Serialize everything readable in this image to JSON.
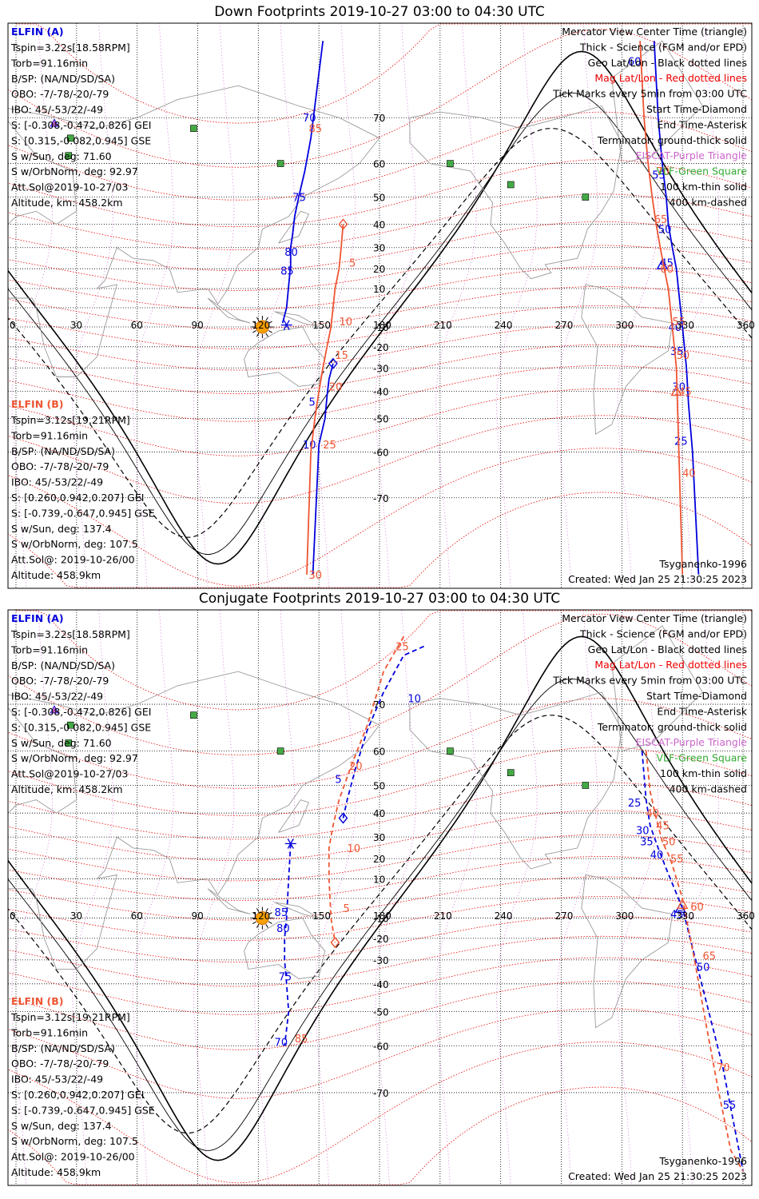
{
  "titles": {
    "down": "Down Footprints 2019-10-27 03:00 to 04:30 UTC",
    "conj": "Conjugate Footprints 2019-10-27 03:00 to 04:30 UTC"
  },
  "colors": {
    "elfin_a": "#0000dd",
    "elfin_b": "#ee5533",
    "mag": "#ee0000",
    "eiscat": "#cc66cc",
    "vlf": "#33aa33",
    "station": "#44aa44",
    "sun": "#f5a000"
  },
  "info_a": {
    "heading": "ELFIN (A)",
    "lines": [
      "Tspin=3.22s[18.58RPM]",
      "Torb=91.16min",
      "B/SP: (NA/ND/SD/SA)",
      "OBO: -7/-78/-20/-79",
      "IBO: 45/-53/22/-49",
      "S: [-0.308,-0.472,0.826] GEI",
      "S: [0.315,-0.082,0.945] GSE",
      "S w/Sun, deg: 71.60",
      "S w/OrbNorm, deg: 92.97",
      "Att.Sol@2019-10-27/03",
      "Altitude, km: 458.2km"
    ]
  },
  "info_b": {
    "heading": "ELFIN (B)",
    "lines": [
      "Tspin=3.12s[19.21RPM]",
      "Torb=91.16min",
      "B/SP: (NA/ND/SD/SA)",
      "OBO: -7/-78/-20/-79",
      "IBO: 45/-53/22/-49",
      "S: [0.260,0.942,0.207] GEI",
      "S: [-0.739,-0.647,0.945] GSE",
      "S w/Sun, deg: 137.4",
      "S w/OrbNorm, deg: 107.5",
      "Att.Sol@: 2019-10-26/00",
      "Altitude: 458.9km"
    ]
  },
  "legend": [
    {
      "text": "Mercator View Center Time (triangle)",
      "color": "#000000"
    },
    {
      "text": "Thick - Science (FGM and/or EPD)",
      "color": "#000000"
    },
    {
      "text": "Geo Lat/Lon - Black dotted lines",
      "color": "#000000"
    },
    {
      "text": "Mag Lat/Lon - Red dotted lines",
      "color": "#ee0000"
    },
    {
      "text": "Tick Marks every 5min from 03:00 UTC",
      "color": "#000000"
    },
    {
      "text": "Start Time-Diamond",
      "color": "#000000"
    },
    {
      "text": "End Time-Asterisk",
      "color": "#000000"
    },
    {
      "text": "Terminator: ground-thick solid",
      "color": "#000000"
    },
    {
      "text": "EISCAT-Purple Triangle",
      "color": "#cc66cc"
    },
    {
      "text": "VLF-Green Square",
      "color": "#33aa33"
    },
    {
      "text": "100 km-thin solid",
      "color": "#000000"
    },
    {
      "text": "400 km-dashed",
      "color": "#000000"
    }
  ],
  "footer": {
    "model": "Tsyganenko-1996",
    "created": "Created: Wed Jan 25 21:30:25 2023"
  },
  "axis_labels": {
    "lon": [
      "0",
      "30",
      "60",
      "90",
      "120",
      "150",
      "180",
      "210",
      "240",
      "270",
      "300",
      "330",
      "360"
    ],
    "lat": [
      "70",
      "60",
      "50",
      "40",
      "30",
      "20",
      "10",
      "-10",
      "-20",
      "-30",
      "-40",
      "-50",
      "-60",
      "-70"
    ]
  },
  "chart_data": [
    {
      "type": "line",
      "title": "Down Footprints 2019-10-27 03:00 to 04:30 UTC",
      "projection": "Mercator",
      "xlabel": "",
      "ylabel": "",
      "xlim": [
        0,
        360
      ],
      "ylim": [
        -80,
        80
      ],
      "x_ticks": [
        0,
        30,
        60,
        90,
        120,
        150,
        180,
        210,
        240,
        270,
        300,
        330,
        360
      ],
      "y_ticks": [
        70,
        60,
        50,
        40,
        30,
        20,
        10,
        -10,
        -20,
        -30,
        -40,
        -50,
        -60,
        -70
      ],
      "grid": true,
      "series": [
        {
          "name": "ELFIN (A)",
          "style": "solid",
          "segments": [
            {
              "lon": [
                152,
                148,
                146,
                143,
                140,
                138,
                137,
                136,
                136,
                134,
                132
              ],
              "lat": [
                80,
                72,
                66,
                58,
                50,
                43,
                36,
                30,
                22,
                0,
                -8
              ]
            },
            {
              "lon": [
                157,
                155,
                154,
                153,
                150,
                147
              ],
              "lat": [
                -28,
                -35,
                -42,
                -50,
                -58,
                -80
              ]
            },
            {
              "lon": [
                316,
                318,
                320,
                322,
                323,
                325,
                327,
                328,
                330,
                332,
                333,
                335,
                338
              ],
              "lat": [
                80,
                70,
                60,
                50,
                40,
                30,
                20,
                10,
                -10,
                -30,
                -45,
                -60,
                -80
              ]
            }
          ],
          "tick_labels": [
            {
              "text": "70",
              "lon": 142,
              "lat": 70
            },
            {
              "text": "75",
              "lon": 137,
              "lat": 50
            },
            {
              "text": "80",
              "lon": 133,
              "lat": 28
            },
            {
              "text": "85",
              "lon": 131,
              "lat": 19
            },
            {
              "text": "5",
              "lon": 145,
              "lat": -44
            },
            {
              "text": "10",
              "lon": 142,
              "lat": -58
            },
            {
              "text": "60",
              "lon": 303,
              "lat": 78
            },
            {
              "text": "55",
              "lon": 315,
              "lat": 57
            },
            {
              "text": "50",
              "lon": 318,
              "lat": 38
            },
            {
              "text": "45",
              "lon": 319,
              "lat": 23
            },
            {
              "text": "40",
              "lon": 323,
              "lat": -10
            },
            {
              "text": "35",
              "lon": 324,
              "lat": -22
            },
            {
              "text": "30",
              "lon": 325,
              "lat": -38
            },
            {
              "text": "25",
              "lon": 326,
              "lat": -57
            }
          ],
          "start_marker": {
            "lon": 157,
            "lat": -28
          },
          "end_marker": {
            "lon": 134,
            "lat": -9
          },
          "center_marker": {
            "lon": 320,
            "lat": 22
          }
        },
        {
          "name": "ELFIN (B)",
          "style": "solid",
          "segments": [
            {
              "lon": [
                162,
                161,
                160,
                158,
                156,
                154,
                152,
                150,
                148,
                146,
                144
              ],
              "lat": [
                40,
                30,
                20,
                10,
                -10,
                -20,
                -30,
                -40,
                -50,
                -60,
                -80
              ]
            },
            {
              "lon": [
                309,
                311,
                313,
                315,
                317,
                319,
                321,
                323,
                325,
                327,
                330
              ],
              "lat": [
                80,
                70,
                60,
                50,
                40,
                30,
                20,
                10,
                -10,
                -30,
                -80
              ]
            }
          ],
          "tick_labels": [
            {
              "text": "85",
              "lon": 145,
              "lat": 68
            },
            {
              "text": "5",
              "lon": 165,
              "lat": 23
            },
            {
              "text": "10",
              "lon": 160,
              "lat": -7
            },
            {
              "text": "15",
              "lon": 158,
              "lat": -24
            },
            {
              "text": "20",
              "lon": 155,
              "lat": -38
            },
            {
              "text": "25",
              "lon": 152,
              "lat": -58
            },
            {
              "text": "30",
              "lon": 145,
              "lat": -80
            },
            {
              "text": "65",
              "lon": 316,
              "lat": 42
            },
            {
              "text": "70",
              "lon": 317,
              "lat": 58
            },
            {
              "text": "60",
              "lon": 319,
              "lat": 20
            },
            {
              "text": "55",
              "lon": 325,
              "lat": -7
            },
            {
              "text": "50",
              "lon": 327,
              "lat": -24
            },
            {
              "text": "45",
              "lon": 328,
              "lat": -40
            },
            {
              "text": "40",
              "lon": 330,
              "lat": -65
            }
          ],
          "start_marker": {
            "lon": 162,
            "lat": 40
          },
          "center_marker": {
            "lon": 327,
            "lat": -40
          }
        }
      ],
      "stations_vlf": [
        [
          88,
          68
        ],
        [
          27,
          66
        ],
        [
          26,
          62
        ],
        [
          131,
          60
        ],
        [
          215,
          60
        ],
        [
          245,
          54
        ],
        [
          282,
          50
        ]
      ],
      "stations_eiscat": [
        [
          19,
          69
        ]
      ],
      "sun": {
        "lon": 122,
        "lat": -10
      }
    },
    {
      "type": "line",
      "title": "Conjugate Footprints 2019-10-27 03:00 to 04:30 UTC",
      "projection": "Mercator",
      "xlabel": "",
      "ylabel": "",
      "xlim": [
        0,
        360
      ],
      "ylim": [
        -80,
        80
      ],
      "x_ticks": [
        0,
        30,
        60,
        90,
        120,
        150,
        180,
        210,
        240,
        270,
        300,
        330,
        360
      ],
      "y_ticks": [
        70,
        60,
        50,
        40,
        30,
        20,
        10,
        -10,
        -20,
        -30,
        -40,
        -50,
        -60,
        -70
      ],
      "grid": true,
      "series": [
        {
          "name": "ELFIN (A)",
          "style": "dashed",
          "segments": [
            {
              "lon": [
                202,
                192,
                182,
                174,
                168,
                164,
                162
              ],
              "lat": [
                78,
                77,
                72,
                65,
                55,
                45,
                38
              ]
            },
            {
              "lon": [
                136,
                135,
                134,
                133,
                133,
                134,
                135,
                133
              ],
              "lat": [
                27,
                10,
                -10,
                -20,
                -30,
                -40,
                -50,
                -60
              ]
            },
            {
              "lon": [
                310,
                312,
                314,
                318,
                322,
                330,
                338,
                350,
                360
              ],
              "lat": [
                60,
                45,
                35,
                25,
                15,
                -5,
                -35,
                -65,
                -80
              ]
            }
          ],
          "tick_labels": [
            {
              "text": "10",
              "lon": 194,
              "lat": 71
            },
            {
              "text": "5",
              "lon": 158,
              "lat": 52
            },
            {
              "text": "85",
              "lon": 128,
              "lat": -7
            },
            {
              "text": "80",
              "lon": 129,
              "lat": -15
            },
            {
              "text": "75",
              "lon": 130,
              "lat": -37
            },
            {
              "text": "70",
              "lon": 128,
              "lat": -59
            },
            {
              "text": "25",
              "lon": 303,
              "lat": 44
            },
            {
              "text": "30",
              "lon": 307,
              "lat": 33
            },
            {
              "text": "35",
              "lon": 309,
              "lat": 28
            },
            {
              "text": "40",
              "lon": 314,
              "lat": 22
            },
            {
              "text": "45",
              "lon": 324,
              "lat": -8
            },
            {
              "text": "50",
              "lon": 337,
              "lat": -33
            },
            {
              "text": "55",
              "lon": 350,
              "lat": -72
            }
          ],
          "start_marker": {
            "lon": 162,
            "lat": 38
          },
          "end_marker": {
            "lon": 136,
            "lat": 27
          },
          "center_marker": {
            "lon": 329,
            "lat": -5
          }
        },
        {
          "name": "ELFIN (B)",
          "style": "dashed",
          "segments": [
            {
              "lon": [
                192,
                182,
                174,
                166,
                160,
                157,
                155,
                155,
                156,
                158
              ],
              "lat": [
                79,
                75,
                66,
                56,
                45,
                35,
                25,
                10,
                -10,
                -22
              ]
            },
            {
              "lon": [
                312,
                314,
                317,
                320,
                324,
                330,
                336,
                342,
                348,
                354,
                360
              ],
              "lat": [
                60,
                48,
                38,
                28,
                20,
                0,
                -30,
                -55,
                -70,
                -78,
                -80
              ]
            }
          ],
          "tick_labels": [
            {
              "text": "25",
              "lon": 188,
              "lat": 78
            },
            {
              "text": "20",
              "lon": 165,
              "lat": 56
            },
            {
              "text": "10",
              "lon": 164,
              "lat": 25
            },
            {
              "text": "5",
              "lon": 162,
              "lat": -5
            },
            {
              "text": "85",
              "lon": 138,
              "lat": -58
            },
            {
              "text": "40",
              "lon": 312,
              "lat": 40
            },
            {
              "text": "45",
              "lon": 317,
              "lat": 35
            },
            {
              "text": "50",
              "lon": 320,
              "lat": 28
            },
            {
              "text": "55",
              "lon": 324,
              "lat": 20
            },
            {
              "text": "60",
              "lon": 334,
              "lat": -4
            },
            {
              "text": "65",
              "lon": 340,
              "lat": -28
            },
            {
              "text": "70",
              "lon": 347,
              "lat": -65
            }
          ],
          "start_marker": {
            "lon": 158,
            "lat": -22
          },
          "center_marker": {
            "lon": 330,
            "lat": -3
          }
        }
      ],
      "stations_vlf": [
        [
          88,
          68
        ],
        [
          27,
          66
        ],
        [
          26,
          62
        ],
        [
          131,
          60
        ],
        [
          215,
          60
        ],
        [
          245,
          54
        ],
        [
          282,
          50
        ]
      ],
      "stations_eiscat": [
        [
          19,
          69
        ]
      ],
      "sun": {
        "lon": 122,
        "lat": -10
      }
    }
  ]
}
